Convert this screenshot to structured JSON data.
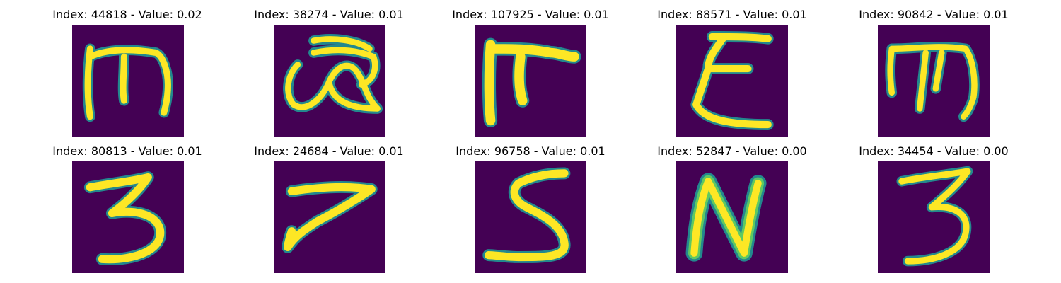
{
  "colormap": {
    "background": "#440154",
    "edge": "#23888e",
    "mid": "#5ec962",
    "stroke": "#fde725"
  },
  "panels": [
    {
      "title": "Index: 44818 - Value: 0.02",
      "glyph": "script-m-icon"
    },
    {
      "title": "Index: 38274 - Value: 0.01",
      "glyph": "loop-glyph-icon"
    },
    {
      "title": "Index: 107925 - Value: 0.01",
      "glyph": "pi-glyph-icon"
    },
    {
      "title": "Index: 88571 - Value: 0.01",
      "glyph": "xi-glyph-icon"
    },
    {
      "title": "Index: 90842 - Value: 0.01",
      "glyph": "script-m-icon"
    },
    {
      "title": "Index: 80813 - Value: 0.01",
      "glyph": "digit-three-icon"
    },
    {
      "title": "Index: 24684 - Value: 0.01",
      "glyph": "digit-seven-icon"
    },
    {
      "title": "Index: 96758 - Value: 0.01",
      "glyph": "digit-five-icon"
    },
    {
      "title": "Index: 52847 - Value: 0.00",
      "glyph": "letter-n-icon"
    },
    {
      "title": "Index: 34454 - Value: 0.00",
      "glyph": "digit-three-icon"
    }
  ]
}
